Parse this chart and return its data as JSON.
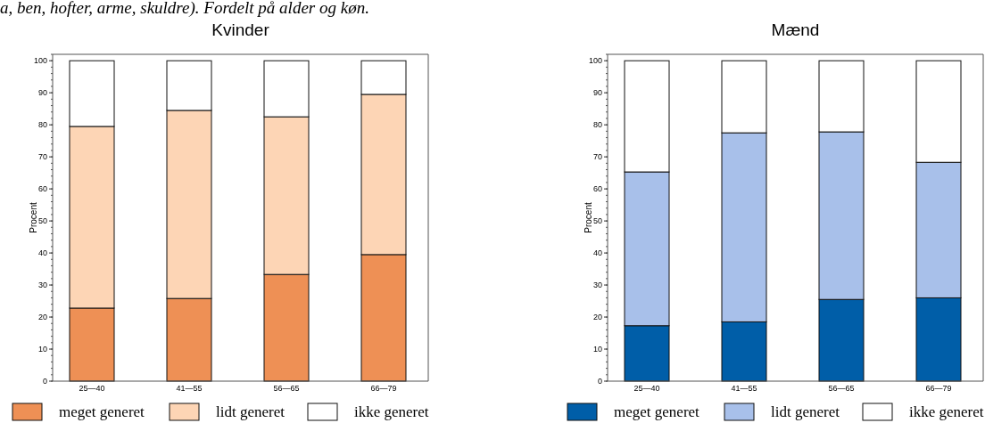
{
  "chart_data": [
    {
      "type": "bar",
      "title": "Kvinder",
      "ylabel": "Procent",
      "annotations": [
        "a, ben, hofter, arme, skuldre). Fordelt på alder og køn."
      ],
      "categories": [
        "25—40",
        "41—55",
        "56—65",
        "66—79"
      ],
      "stacked": true,
      "ylim": [
        0,
        102
      ],
      "yticks": [
        0,
        10,
        20,
        30,
        40,
        50,
        60,
        70,
        80,
        90,
        100
      ],
      "legend": "bottom",
      "series": [
        {
          "name": "meget generet",
          "color": "#ee9055",
          "values": [
            22.8,
            25.8,
            33.3,
            39.5
          ]
        },
        {
          "name": "lidt generet",
          "color": "#fdd5b5",
          "values": [
            56.7,
            58.7,
            49.2,
            50.0
          ]
        },
        {
          "name": "ikke generet",
          "color": "#ffffff",
          "values": [
            20.5,
            15.5,
            17.5,
            10.5
          ]
        }
      ]
    },
    {
      "type": "bar",
      "title": "Mænd",
      "ylabel": "Procent",
      "categories": [
        "25—40",
        "41—55",
        "56—65",
        "66—79"
      ],
      "stacked": true,
      "ylim": [
        0,
        102
      ],
      "yticks": [
        0,
        10,
        20,
        30,
        40,
        50,
        60,
        70,
        80,
        90,
        100
      ],
      "legend": "bottom",
      "series": [
        {
          "name": "meget generet",
          "color": "#005ea8",
          "values": [
            17.3,
            18.5,
            25.5,
            26.0
          ]
        },
        {
          "name": "lidt generet",
          "color": "#a8c0ea",
          "values": [
            48.0,
            59.0,
            52.3,
            42.3
          ]
        },
        {
          "name": "ikke generet",
          "color": "#ffffff",
          "values": [
            34.7,
            22.5,
            22.2,
            31.7
          ]
        }
      ]
    }
  ]
}
